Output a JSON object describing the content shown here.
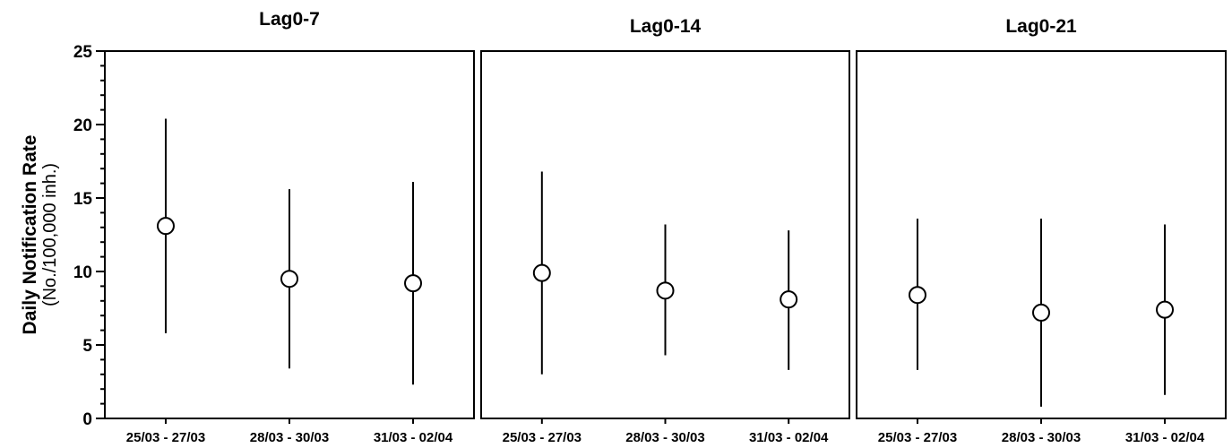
{
  "chart_data": {
    "type": "scatter",
    "ylabel": "Daily Notification Rate",
    "ylabel_sub": "(No./100,000 inh.)",
    "ylim": [
      0,
      25
    ],
    "yticks": [
      0,
      5,
      10,
      15,
      20,
      25
    ],
    "yminor_step": 1,
    "grid": false,
    "categories": [
      "25/03 - 27/03",
      "28/03 - 30/03",
      "31/03 - 02/04"
    ],
    "panels": [
      {
        "title": "Lag0-7",
        "points": [
          {
            "category": "25/03 - 27/03",
            "value": 13.1,
            "lower": 5.8,
            "upper": 20.4
          },
          {
            "category": "28/03 - 30/03",
            "value": 9.5,
            "lower": 3.4,
            "upper": 15.6
          },
          {
            "category": "31/03 - 02/04",
            "value": 9.2,
            "lower": 2.3,
            "upper": 16.1
          }
        ]
      },
      {
        "title": "Lag0-14",
        "points": [
          {
            "category": "25/03 - 27/03",
            "value": 9.9,
            "lower": 3.0,
            "upper": 16.8
          },
          {
            "category": "28/03 - 30/03",
            "value": 8.7,
            "lower": 4.3,
            "upper": 13.2
          },
          {
            "category": "31/03 - 02/04",
            "value": 8.1,
            "lower": 3.3,
            "upper": 12.8
          }
        ]
      },
      {
        "title": "Lag0-21",
        "points": [
          {
            "category": "25/03 - 27/03",
            "value": 8.4,
            "lower": 3.3,
            "upper": 13.6
          },
          {
            "category": "28/03 - 30/03",
            "value": 7.2,
            "lower": 0.8,
            "upper": 13.6
          },
          {
            "category": "31/03 - 02/04",
            "value": 7.4,
            "lower": 1.6,
            "upper": 13.2
          }
        ]
      }
    ]
  }
}
